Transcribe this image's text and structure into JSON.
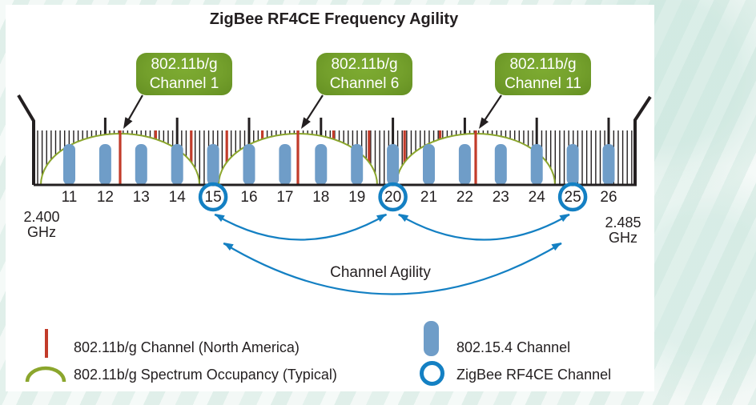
{
  "title": "ZigBee RF4CE Frequency Agility",
  "callouts": [
    {
      "line1": "802.11b/g",
      "line2": "Channel 1"
    },
    {
      "line1": "802.11b/g",
      "line2": "Channel 6"
    },
    {
      "line1": "802.11b/g",
      "line2": "Channel 11"
    }
  ],
  "axis": {
    "channel_numbers": [
      11,
      12,
      13,
      14,
      15,
      16,
      17,
      18,
      19,
      20,
      21,
      22,
      23,
      24,
      25,
      26
    ],
    "circled_channels": [
      15,
      20,
      25
    ],
    "freq_start": {
      "line1": "2.400",
      "line2": "GHz"
    },
    "freq_end": {
      "line1": "2.485",
      "line2": "GHz"
    }
  },
  "wifi_channels_na": [
    1,
    2,
    3,
    4,
    5,
    6,
    7,
    8,
    9,
    10,
    11
  ],
  "spectrum_center_channels": [
    1,
    6,
    11
  ],
  "agility": {
    "label": "Channel Agility"
  },
  "legend": {
    "wifi_channel": "802.11b/g Channel (North America)",
    "wifi_spectrum": "802.11b/g Spectrum Occupancy (Typical)",
    "zigbee_channel": "802.15.4 Channel",
    "rf4ce_channel": "ZigBee RF4CE Channel"
  },
  "colors": {
    "wifi_red": "#c23b2a",
    "spectrum_green": "#8ba62d",
    "channel_bar_blue": "#6f9dc8",
    "rf4ce_blue": "#1480c3",
    "callout_green": "#74a02c",
    "ink": "#231f20"
  }
}
